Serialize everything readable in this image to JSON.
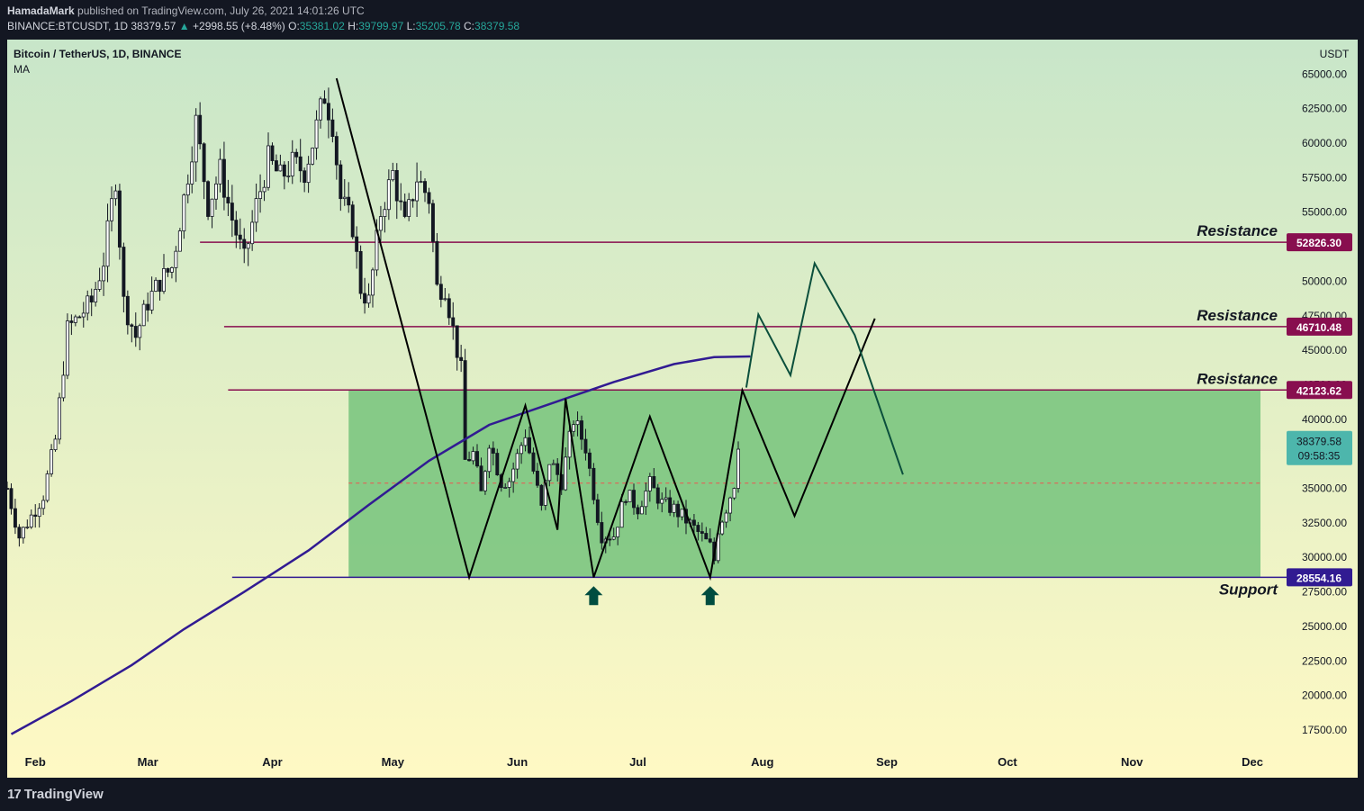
{
  "header": {
    "author": "HamadaMark",
    "published": "published on TradingView.com, July 26, 2021 14:01:26 UTC",
    "symbol": "BINANCE:BTCUSDT, 1D",
    "last": "38379.57",
    "change": "+2998.55 (+8.48%)",
    "o_label": "O:",
    "o": "35381.02",
    "h_label": "H:",
    "h": "39799.97",
    "l_label": "L:",
    "l": "35205.78",
    "c_label": "C:",
    "c": "38379.58"
  },
  "chart_data": {
    "type": "candlestick",
    "title": "Bitcoin / TetherUS, 1D, BINANCE",
    "indicator": "MA",
    "currency": "USDT",
    "ylim": [
      16000,
      67500
    ],
    "y_ticks": [
      17500,
      20000,
      22500,
      25000,
      27500,
      30000,
      32500,
      35000,
      37500,
      40000,
      42500,
      45000,
      47500,
      50000,
      52500,
      55000,
      57500,
      60000,
      62500,
      65000
    ],
    "y_tick_labels": [
      "17500.00",
      "20000.00",
      "22500.00",
      "25000.00",
      "27500.00",
      "30000.00",
      "32500.00",
      "35000.00",
      "37500.00",
      "40000.00",
      "42500.00",
      "45000.00",
      "47500.00",
      "50000.00",
      "52500.00",
      "55000.00",
      "57500.00",
      "60000.00",
      "62500.00",
      "65000.00"
    ],
    "x_range": [
      "2021-01-25",
      "2021-12-03"
    ],
    "x_ticks": [
      {
        "label": "Feb",
        "date": "2021-02-01"
      },
      {
        "label": "Mar",
        "date": "2021-03-01"
      },
      {
        "label": "Apr",
        "date": "2021-04-01"
      },
      {
        "label": "May",
        "date": "2021-05-01"
      },
      {
        "label": "Jun",
        "date": "2021-06-01"
      },
      {
        "label": "Jul",
        "date": "2021-07-01"
      },
      {
        "label": "Aug",
        "date": "2021-08-01"
      },
      {
        "label": "Sep",
        "date": "2021-09-01"
      },
      {
        "label": "Oct",
        "date": "2021-10-01"
      },
      {
        "label": "Nov",
        "date": "2021-11-01"
      },
      {
        "label": "Dec",
        "date": "2021-12-01"
      }
    ],
    "price_path": [
      [
        "2021-01-25",
        35000
      ],
      [
        "2021-01-28",
        31500
      ],
      [
        "2021-01-31",
        33000
      ],
      [
        "2021-02-03",
        34500
      ],
      [
        "2021-02-06",
        38500
      ],
      [
        "2021-02-09",
        46500
      ],
      [
        "2021-02-12",
        47500
      ],
      [
        "2021-02-15",
        48500
      ],
      [
        "2021-02-18",
        51500
      ],
      [
        "2021-02-21",
        57500
      ],
      [
        "2021-02-23",
        48500
      ],
      [
        "2021-02-26",
        46000
      ],
      [
        "2021-03-01",
        48500
      ],
      [
        "2021-03-04",
        50000
      ],
      [
        "2021-03-07",
        51000
      ],
      [
        "2021-03-10",
        56000
      ],
      [
        "2021-03-13",
        61500
      ],
      [
        "2021-03-16",
        55500
      ],
      [
        "2021-03-19",
        58000
      ],
      [
        "2021-03-22",
        54500
      ],
      [
        "2021-03-25",
        51500
      ],
      [
        "2021-03-28",
        55500
      ],
      [
        "2021-03-31",
        58800
      ],
      [
        "2021-04-03",
        57500
      ],
      [
        "2021-04-06",
        58500
      ],
      [
        "2021-04-09",
        58000
      ],
      [
        "2021-04-11",
        60000
      ],
      [
        "2021-04-14",
        63500
      ],
      [
        "2021-04-16",
        61500
      ],
      [
        "2021-04-18",
        56000
      ],
      [
        "2021-04-21",
        54000
      ],
      [
        "2021-04-23",
        49500
      ],
      [
        "2021-04-25",
        48500
      ],
      [
        "2021-04-28",
        55000
      ],
      [
        "2021-05-01",
        57800
      ],
      [
        "2021-05-04",
        54000
      ],
      [
        "2021-05-07",
        57500
      ],
      [
        "2021-05-10",
        56000
      ],
      [
        "2021-05-12",
        49500
      ],
      [
        "2021-05-14",
        49600
      ],
      [
        "2021-05-16",
        46500
      ],
      [
        "2021-05-18",
        43500
      ],
      [
        "2021-05-19",
        37000
      ],
      [
        "2021-05-21",
        37500
      ],
      [
        "2021-05-23",
        34600
      ],
      [
        "2021-05-25",
        38500
      ],
      [
        "2021-05-28",
        35500
      ],
      [
        "2021-05-30",
        35600
      ],
      [
        "2021-06-03",
        39000
      ],
      [
        "2021-06-07",
        33500
      ],
      [
        "2021-06-09",
        37000
      ],
      [
        "2021-06-12",
        35500
      ],
      [
        "2021-06-15",
        40000
      ],
      [
        "2021-06-18",
        38000
      ],
      [
        "2021-06-21",
        33000
      ],
      [
        "2021-06-22",
        31600
      ],
      [
        "2021-06-25",
        31600
      ],
      [
        "2021-06-28",
        34600
      ],
      [
        "2021-07-01",
        33600
      ],
      [
        "2021-07-04",
        35300
      ],
      [
        "2021-07-07",
        33900
      ],
      [
        "2021-07-10",
        33500
      ],
      [
        "2021-07-13",
        32700
      ],
      [
        "2021-07-16",
        31800
      ],
      [
        "2021-07-19",
        30800
      ],
      [
        "2021-07-20",
        29800
      ],
      [
        "2021-07-21",
        32100
      ],
      [
        "2021-07-23",
        33600
      ],
      [
        "2021-07-25",
        35400
      ],
      [
        "2021-07-26",
        38380
      ]
    ],
    "moving_average": [
      [
        "2021-01-26",
        17200
      ],
      [
        "2021-02-10",
        19600
      ],
      [
        "2021-02-25",
        22200
      ],
      [
        "2021-03-10",
        24800
      ],
      [
        "2021-03-25",
        27500
      ],
      [
        "2021-04-10",
        30500
      ],
      [
        "2021-04-25",
        33800
      ],
      [
        "2021-05-10",
        37000
      ],
      [
        "2021-05-25",
        39600
      ],
      [
        "2021-06-10",
        41200
      ],
      [
        "2021-06-25",
        42700
      ],
      [
        "2021-07-10",
        44000
      ],
      [
        "2021-07-20",
        44500
      ],
      [
        "2021-07-29",
        44550
      ]
    ],
    "range_box": {
      "from": "2021-04-20",
      "to": "2021-12-03",
      "low": 28554.16,
      "high": 42123.62
    },
    "price_line": 35381.02,
    "horizontal_levels": [
      {
        "label": "Resistance",
        "value": 52826.3,
        "value_label": "52826.30",
        "from": "2021-03-14",
        "color": "#880e4f"
      },
      {
        "label": "Resistance",
        "value": 46710.48,
        "value_label": "46710.48",
        "from": "2021-03-20",
        "color": "#880e4f"
      },
      {
        "label": "Resistance",
        "value": 42123.62,
        "value_label": "42123.62",
        "from": "2021-03-21",
        "color": "#880e4f"
      },
      {
        "label": "Support",
        "value": 28554.16,
        "value_label": "28554.16",
        "from": "2021-03-22",
        "color": "#311b92"
      }
    ],
    "current_price": {
      "value": 38379.58,
      "value_label": "38379.58",
      "countdown": "09:58:35",
      "color": "#4db6ac"
    },
    "drawn_path_black": [
      [
        "2021-04-17",
        64700
      ],
      [
        "2021-05-20",
        28554
      ],
      [
        "2021-06-03",
        41000
      ],
      [
        "2021-06-11",
        32000
      ],
      [
        "2021-06-13",
        41500
      ],
      [
        "2021-06-20",
        28554
      ],
      [
        "2021-07-04",
        40200
      ],
      [
        "2021-07-19",
        28554
      ],
      [
        "2021-07-27",
        42100
      ],
      [
        "2021-08-09",
        33000
      ],
      [
        "2021-08-29",
        47300
      ]
    ],
    "projection_path_green": [
      [
        "2021-07-28",
        42300
      ],
      [
        "2021-07-31",
        47600
      ],
      [
        "2021-08-08",
        43200
      ],
      [
        "2021-08-14",
        51300
      ],
      [
        "2021-08-24",
        46100
      ],
      [
        "2021-09-05",
        36000
      ]
    ],
    "arrows": [
      {
        "date": "2021-06-20",
        "value": 27200,
        "direction": "up",
        "color": "#004d40"
      },
      {
        "date": "2021-07-19",
        "value": 27200,
        "direction": "up",
        "color": "#004d40"
      }
    ]
  },
  "footer": {
    "brand": "TradingView",
    "brand_mark": "17"
  }
}
